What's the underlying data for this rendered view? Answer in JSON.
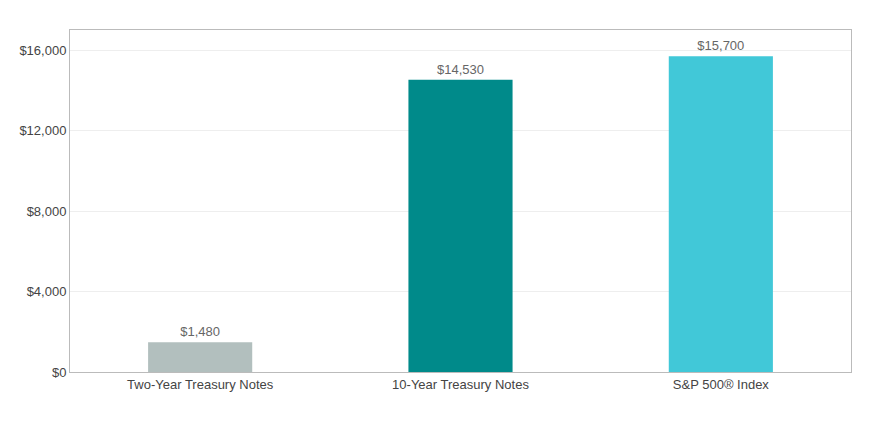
{
  "chart_data": {
    "type": "bar",
    "categories": [
      "Two-Year Treasury Notes",
      "10-Year Treasury Notes",
      "S&P 500® Index"
    ],
    "values": [
      1480,
      14530,
      15700
    ],
    "value_labels": [
      "$1,480",
      "$14,530",
      "$15,700"
    ],
    "data_labels": true,
    "colors": [
      "#b2bfbe",
      "#008a8a",
      "#41c8d8"
    ],
    "ylim": [
      0,
      17000
    ],
    "yticks": [
      {
        "value": 0,
        "label": "$0"
      },
      {
        "value": 4000,
        "label": "$4,000"
      },
      {
        "value": 8000,
        "label": "$8,000"
      },
      {
        "value": 12000,
        "label": "$12,000"
      },
      {
        "value": 16000,
        "label": "$16,000"
      }
    ],
    "grid": true
  }
}
